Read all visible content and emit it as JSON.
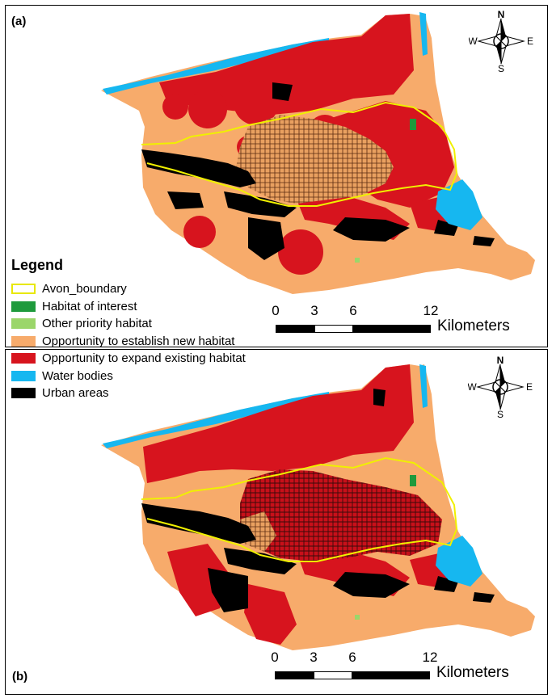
{
  "figure": {
    "panels": [
      {
        "label": "(a)"
      },
      {
        "label": "(b)"
      }
    ]
  },
  "compass": {
    "north": "N",
    "south": "S",
    "east": "E",
    "west": "W"
  },
  "legend": {
    "title": "Legend",
    "items": [
      {
        "label": "Avon_boundary",
        "color": "#e8e800",
        "type": "outline"
      },
      {
        "label": "Habitat of interest",
        "color": "#1e9a3c",
        "type": "fill"
      },
      {
        "label": "Other priority habitat",
        "color": "#9bd66a",
        "type": "fill"
      },
      {
        "label": "Opportunity to establish new habitat",
        "color": "#f7ab6b",
        "type": "fill"
      },
      {
        "label": "Opportunity to expand existing habitat",
        "color": "#d7141e",
        "type": "fill"
      },
      {
        "label": "Water  bodies",
        "color": "#16b7f0",
        "type": "fill"
      },
      {
        "label": "Urban areas",
        "color": "#000000",
        "type": "fill"
      }
    ]
  },
  "scalebar": {
    "ticks": [
      "0",
      "3",
      "6",
      "12"
    ],
    "unit": "Kilometers"
  }
}
